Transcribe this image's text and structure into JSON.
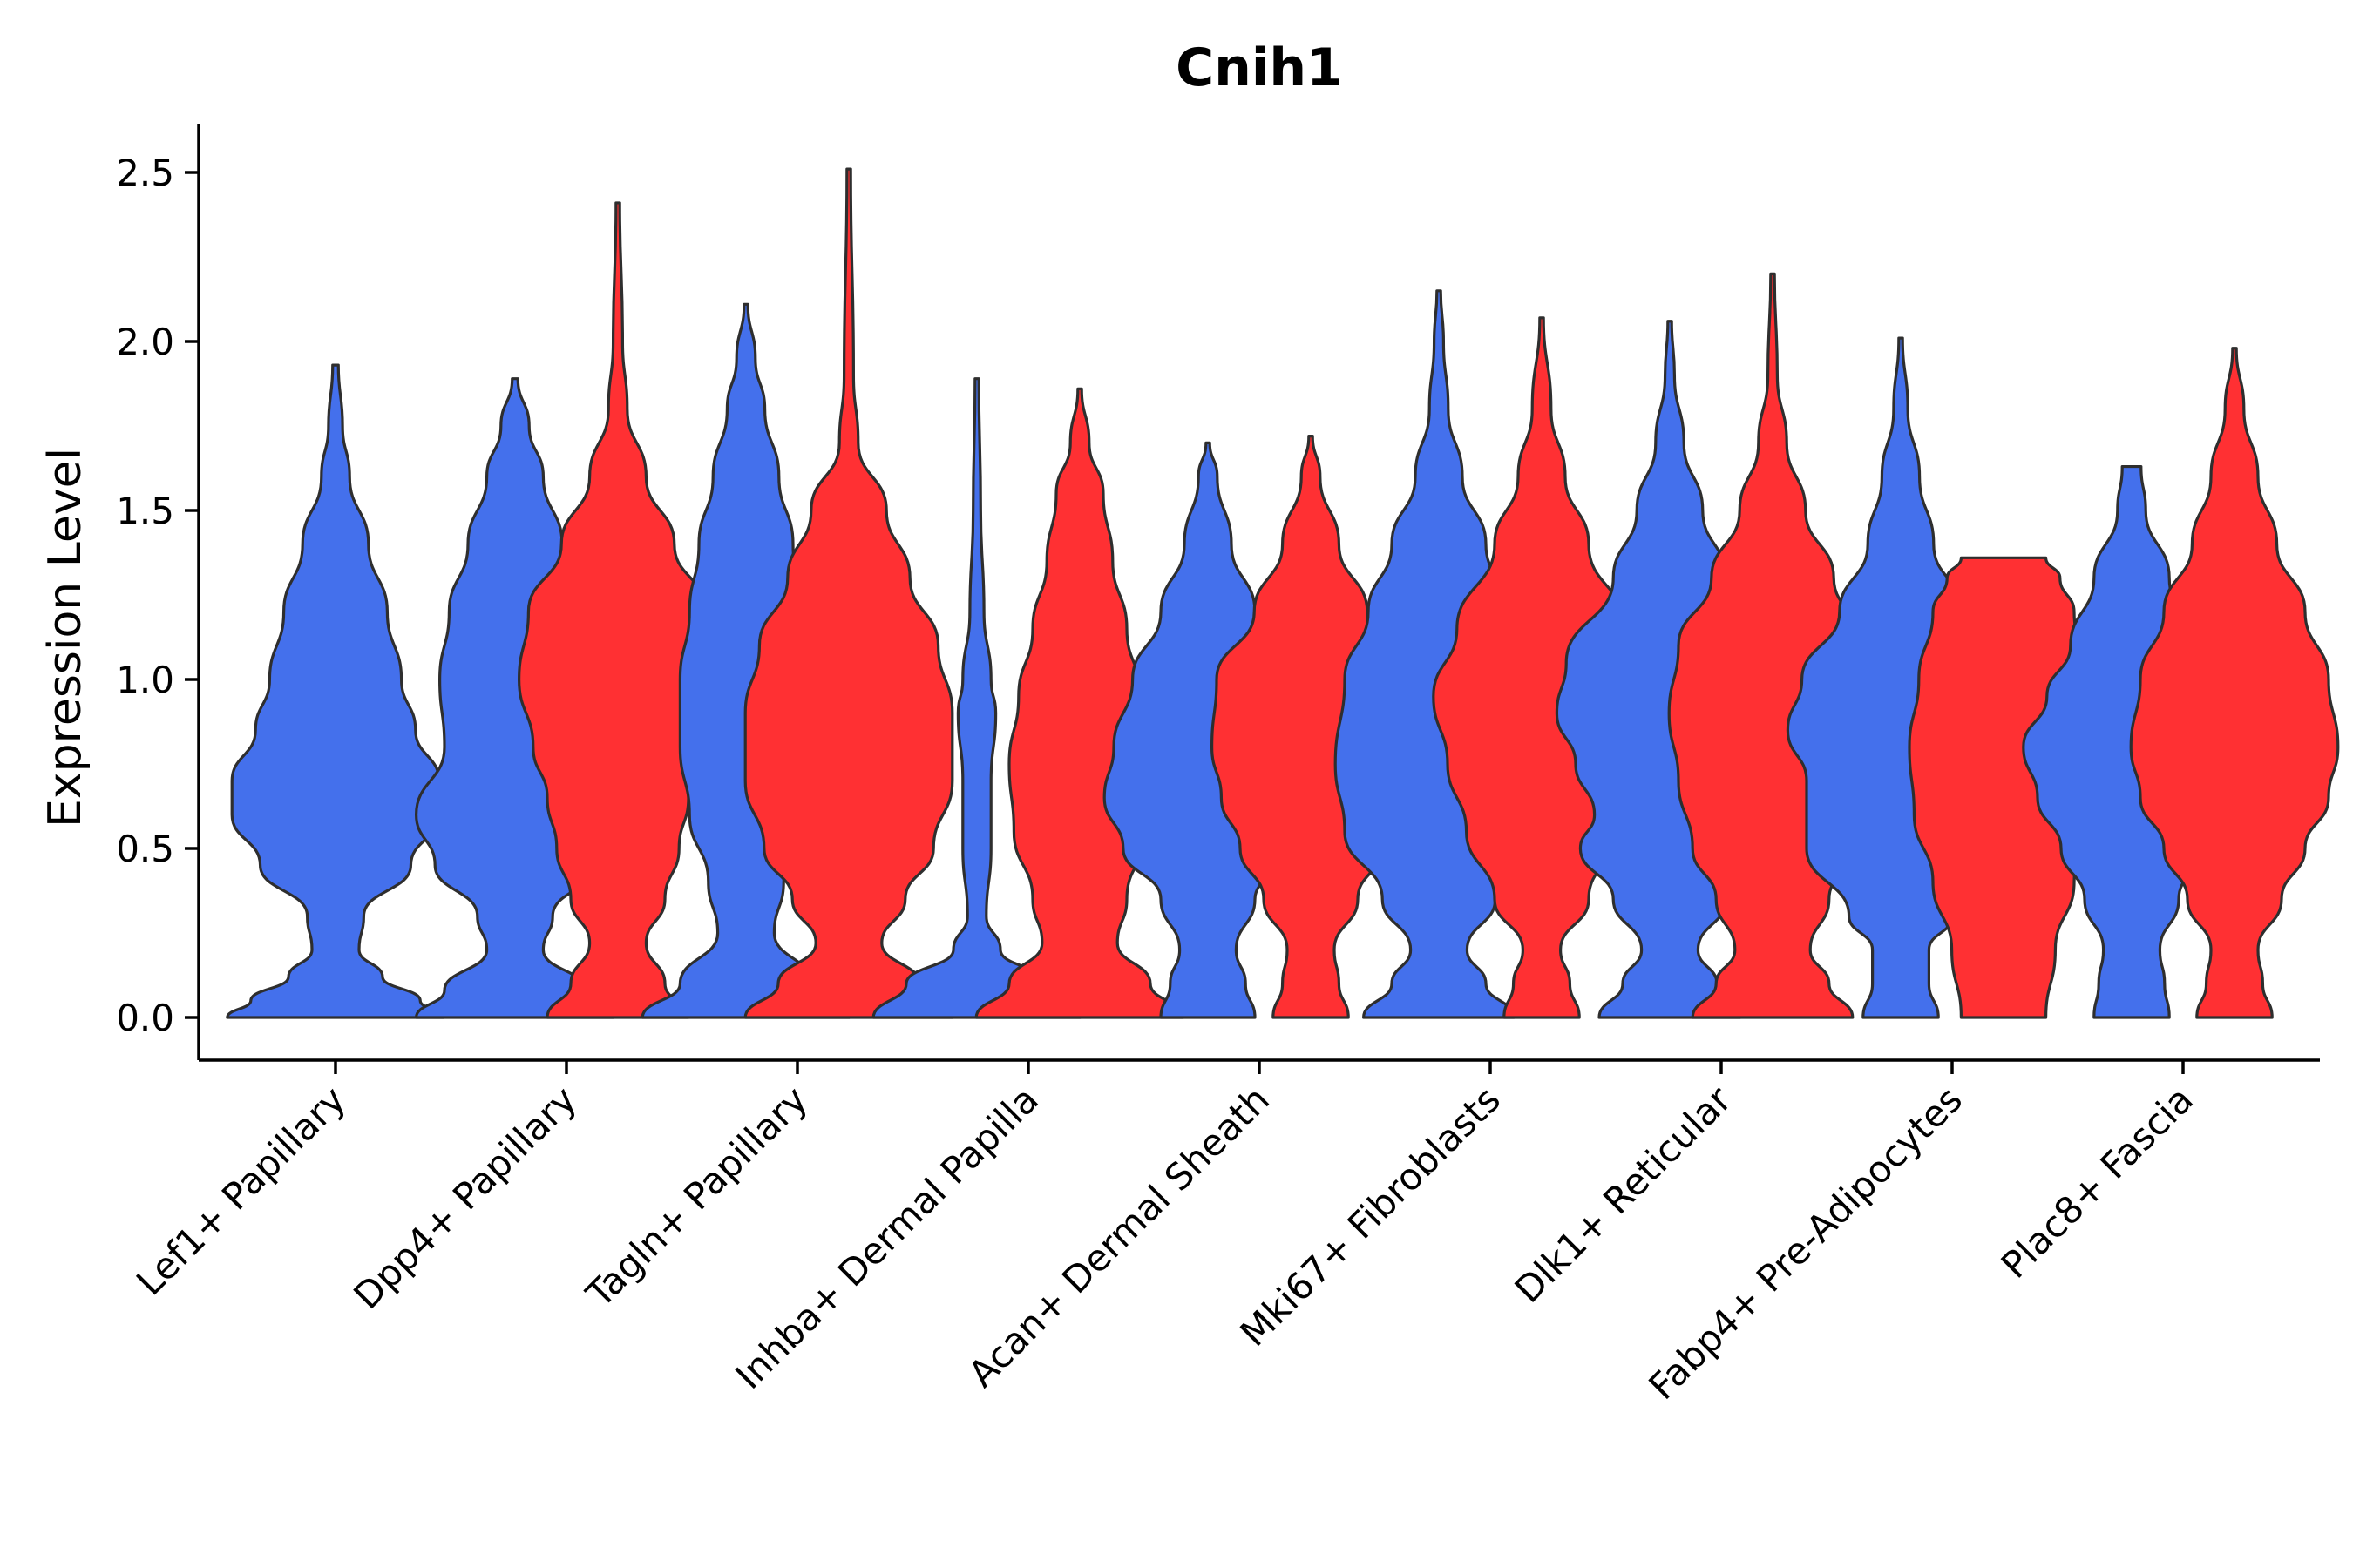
{
  "chart_data": {
    "type": "violin",
    "title": "Cnih1",
    "xlabel": "",
    "ylabel": "Expression Level",
    "ylim": [
      -0.12,
      2.65
    ],
    "yticks": [
      "0.0",
      "0.5",
      "1.0",
      "1.5",
      "2.0",
      "2.5"
    ],
    "ytick_values": [
      0,
      0.5,
      1.0,
      1.5,
      2.0,
      2.5
    ],
    "series_colors": {
      "group1": "#4470EC",
      "group2": "#FF3033"
    },
    "categories": [
      "Lef1+ Papillary",
      "Dpp4+ Papillary",
      "Tagln+ Papillary",
      "Inhba+ Dermal Papilla",
      "Acan+ Dermal Sheath",
      "Mki67+ Fibroblasts",
      "Dlk1+ Reticular",
      "Fabp4+ Pre-Adipocytes",
      "Plac8+ Fascia"
    ],
    "violins": [
      {
        "category": "Lef1+ Papillary",
        "group": "group1",
        "max": 1.93,
        "profile": [
          [
            0.0,
            0.23
          ],
          [
            0.05,
            0.18
          ],
          [
            0.12,
            0.1
          ],
          [
            0.2,
            0.05
          ],
          [
            0.3,
            0.06
          ],
          [
            0.45,
            0.16
          ],
          [
            0.6,
            0.22
          ],
          [
            0.7,
            0.22
          ],
          [
            0.85,
            0.17
          ],
          [
            1.0,
            0.14
          ],
          [
            1.2,
            0.11
          ],
          [
            1.4,
            0.07
          ],
          [
            1.6,
            0.03
          ],
          [
            1.75,
            0.015
          ],
          [
            1.93,
            0.006
          ]
        ]
      },
      {
        "category": "Dpp4+ Papillary",
        "group": "group1",
        "max": 1.89,
        "profile": [
          [
            0.0,
            0.21
          ],
          [
            0.08,
            0.15
          ],
          [
            0.2,
            0.06
          ],
          [
            0.3,
            0.08
          ],
          [
            0.45,
            0.17
          ],
          [
            0.6,
            0.21
          ],
          [
            0.8,
            0.15
          ],
          [
            1.0,
            0.16
          ],
          [
            1.2,
            0.14
          ],
          [
            1.4,
            0.1
          ],
          [
            1.6,
            0.06
          ],
          [
            1.75,
            0.03
          ],
          [
            1.89,
            0.006
          ]
        ]
      },
      {
        "category": "Dpp4+ Papillary",
        "group": "group2",
        "max": 2.41,
        "profile": [
          [
            0.0,
            0.15
          ],
          [
            0.1,
            0.1
          ],
          [
            0.22,
            0.06
          ],
          [
            0.35,
            0.1
          ],
          [
            0.5,
            0.13
          ],
          [
            0.65,
            0.15
          ],
          [
            0.8,
            0.18
          ],
          [
            1.0,
            0.21
          ],
          [
            1.2,
            0.19
          ],
          [
            1.4,
            0.12
          ],
          [
            1.6,
            0.06
          ],
          [
            1.8,
            0.02
          ],
          [
            2.0,
            0.01
          ],
          [
            2.41,
            0.004
          ]
        ]
      },
      {
        "category": "Tagln+ Papillary",
        "group": "group1",
        "max": 2.11,
        "profile": [
          [
            0.0,
            0.22
          ],
          [
            0.1,
            0.14
          ],
          [
            0.25,
            0.06
          ],
          [
            0.4,
            0.08
          ],
          [
            0.6,
            0.12
          ],
          [
            0.8,
            0.14
          ],
          [
            1.0,
            0.14
          ],
          [
            1.2,
            0.12
          ],
          [
            1.4,
            0.1
          ],
          [
            1.6,
            0.07
          ],
          [
            1.8,
            0.04
          ],
          [
            1.95,
            0.02
          ],
          [
            2.11,
            0.004
          ]
        ]
      },
      {
        "category": "Tagln+ Papillary",
        "group": "group2",
        "max": 2.51,
        "profile": [
          [
            0.0,
            0.22
          ],
          [
            0.1,
            0.15
          ],
          [
            0.22,
            0.07
          ],
          [
            0.35,
            0.12
          ],
          [
            0.5,
            0.18
          ],
          [
            0.7,
            0.22
          ],
          [
            0.9,
            0.22
          ],
          [
            1.1,
            0.19
          ],
          [
            1.3,
            0.13
          ],
          [
            1.5,
            0.08
          ],
          [
            1.7,
            0.02
          ],
          [
            1.9,
            0.01
          ],
          [
            2.51,
            0.004
          ]
        ]
      },
      {
        "category": "Inhba+ Dermal Papilla",
        "group": "group1",
        "max": 1.89,
        "profile": [
          [
            0.0,
            0.22
          ],
          [
            0.1,
            0.15
          ],
          [
            0.2,
            0.05
          ],
          [
            0.3,
            0.02
          ],
          [
            0.5,
            0.03
          ],
          [
            0.7,
            0.03
          ],
          [
            0.9,
            0.04
          ],
          [
            1.0,
            0.03
          ],
          [
            1.2,
            0.015
          ],
          [
            1.5,
            0.008
          ],
          [
            1.89,
            0.004
          ]
        ]
      },
      {
        "category": "Inhba+ Dermal Papilla",
        "group": "group2",
        "max": 1.86,
        "profile": [
          [
            0.0,
            0.22
          ],
          [
            0.1,
            0.15
          ],
          [
            0.22,
            0.08
          ],
          [
            0.35,
            0.1
          ],
          [
            0.55,
            0.14
          ],
          [
            0.75,
            0.15
          ],
          [
            0.95,
            0.13
          ],
          [
            1.15,
            0.1
          ],
          [
            1.35,
            0.07
          ],
          [
            1.55,
            0.05
          ],
          [
            1.7,
            0.02
          ],
          [
            1.86,
            0.004
          ]
        ]
      },
      {
        "category": "Acan+ Dermal Sheath",
        "group": "group1",
        "max": 1.7,
        "profile": [
          [
            0.0,
            0.1
          ],
          [
            0.1,
            0.08
          ],
          [
            0.2,
            0.06
          ],
          [
            0.35,
            0.1
          ],
          [
            0.5,
            0.18
          ],
          [
            0.65,
            0.22
          ],
          [
            0.8,
            0.2
          ],
          [
            1.0,
            0.16
          ],
          [
            1.2,
            0.1
          ],
          [
            1.4,
            0.05
          ],
          [
            1.6,
            0.02
          ],
          [
            1.7,
            0.004
          ]
        ]
      },
      {
        "category": "Acan+ Dermal Sheath",
        "group": "group2",
        "max": 1.72,
        "profile": [
          [
            0.0,
            0.08
          ],
          [
            0.1,
            0.06
          ],
          [
            0.2,
            0.05
          ],
          [
            0.35,
            0.1
          ],
          [
            0.5,
            0.15
          ],
          [
            0.65,
            0.19
          ],
          [
            0.8,
            0.21
          ],
          [
            1.0,
            0.2
          ],
          [
            1.2,
            0.12
          ],
          [
            1.4,
            0.06
          ],
          [
            1.6,
            0.02
          ],
          [
            1.72,
            0.004
          ]
        ]
      },
      {
        "category": "Mki67+ Fibroblasts",
        "group": "group1",
        "max": 2.15,
        "profile": [
          [
            0.0,
            0.16
          ],
          [
            0.1,
            0.1
          ],
          [
            0.2,
            0.06
          ],
          [
            0.35,
            0.12
          ],
          [
            0.55,
            0.2
          ],
          [
            0.75,
            0.22
          ],
          [
            1.0,
            0.2
          ],
          [
            1.2,
            0.15
          ],
          [
            1.4,
            0.1
          ],
          [
            1.6,
            0.05
          ],
          [
            1.8,
            0.02
          ],
          [
            2.0,
            0.01
          ],
          [
            2.15,
            0.004
          ]
        ]
      },
      {
        "category": "Mki67+ Fibroblasts",
        "group": "group2",
        "max": 2.07,
        "profile": [
          [
            0.0,
            0.08
          ],
          [
            0.1,
            0.06
          ],
          [
            0.2,
            0.04
          ],
          [
            0.35,
            0.1
          ],
          [
            0.55,
            0.16
          ],
          [
            0.75,
            0.2
          ],
          [
            0.95,
            0.23
          ],
          [
            1.15,
            0.18
          ],
          [
            1.4,
            0.1
          ],
          [
            1.6,
            0.05
          ],
          [
            1.8,
            0.02
          ],
          [
            2.07,
            0.004
          ]
        ]
      },
      {
        "category": "Dlk1+ Reticular",
        "group": "group1",
        "max": 2.06,
        "profile": [
          [
            0.0,
            0.15
          ],
          [
            0.1,
            0.1
          ],
          [
            0.2,
            0.06
          ],
          [
            0.35,
            0.12
          ],
          [
            0.5,
            0.19
          ],
          [
            0.6,
            0.16
          ],
          [
            0.75,
            0.2
          ],
          [
            0.9,
            0.24
          ],
          [
            1.05,
            0.22
          ],
          [
            1.3,
            0.12
          ],
          [
            1.5,
            0.07
          ],
          [
            1.7,
            0.03
          ],
          [
            1.9,
            0.01
          ],
          [
            2.06,
            0.004
          ]
        ]
      },
      {
        "category": "Dlk1+ Reticular",
        "group": "group2",
        "max": 2.2,
        "profile": [
          [
            0.0,
            0.17
          ],
          [
            0.1,
            0.12
          ],
          [
            0.2,
            0.08
          ],
          [
            0.35,
            0.12
          ],
          [
            0.5,
            0.17
          ],
          [
            0.7,
            0.2
          ],
          [
            0.9,
            0.22
          ],
          [
            1.1,
            0.2
          ],
          [
            1.3,
            0.13
          ],
          [
            1.5,
            0.07
          ],
          [
            1.7,
            0.03
          ],
          [
            1.9,
            0.01
          ],
          [
            2.2,
            0.004
          ]
        ]
      },
      {
        "category": "Fabp4+ Pre-Adipocytes",
        "group": "group1",
        "max": 2.01,
        "profile": [
          [
            0.0,
            0.08
          ],
          [
            0.1,
            0.06
          ],
          [
            0.2,
            0.06
          ],
          [
            0.3,
            0.11
          ],
          [
            0.5,
            0.2
          ],
          [
            0.7,
            0.2
          ],
          [
            0.85,
            0.24
          ],
          [
            1.0,
            0.21
          ],
          [
            1.2,
            0.13
          ],
          [
            1.4,
            0.07
          ],
          [
            1.6,
            0.04
          ],
          [
            1.8,
            0.015
          ],
          [
            2.01,
            0.004
          ]
        ]
      },
      {
        "category": "Fabp4+ Pre-Adipocytes",
        "group": "group2",
        "max": 1.36,
        "profile": [
          [
            0.0,
            0.09
          ],
          [
            0.2,
            0.11
          ],
          [
            0.4,
            0.15
          ],
          [
            0.6,
            0.19
          ],
          [
            0.8,
            0.2
          ],
          [
            1.0,
            0.18
          ],
          [
            1.2,
            0.15
          ],
          [
            1.3,
            0.12
          ],
          [
            1.36,
            0.09
          ]
        ]
      },
      {
        "category": "Plac8+ Fascia",
        "group": "group1",
        "max": 1.63,
        "profile": [
          [
            0.0,
            0.08
          ],
          [
            0.1,
            0.07
          ],
          [
            0.2,
            0.06
          ],
          [
            0.35,
            0.1
          ],
          [
            0.5,
            0.15
          ],
          [
            0.65,
            0.2
          ],
          [
            0.8,
            0.23
          ],
          [
            0.95,
            0.18
          ],
          [
            1.1,
            0.13
          ],
          [
            1.3,
            0.08
          ],
          [
            1.5,
            0.03
          ],
          [
            1.63,
            0.02
          ]
        ]
      },
      {
        "category": "Plac8+ Fascia",
        "group": "group2",
        "max": 1.98,
        "profile": [
          [
            0.0,
            0.08
          ],
          [
            0.1,
            0.06
          ],
          [
            0.2,
            0.05
          ],
          [
            0.35,
            0.1
          ],
          [
            0.5,
            0.15
          ],
          [
            0.65,
            0.2
          ],
          [
            0.8,
            0.22
          ],
          [
            1.0,
            0.2
          ],
          [
            1.2,
            0.15
          ],
          [
            1.4,
            0.09
          ],
          [
            1.6,
            0.05
          ],
          [
            1.8,
            0.02
          ],
          [
            1.98,
            0.004
          ]
        ]
      }
    ]
  }
}
